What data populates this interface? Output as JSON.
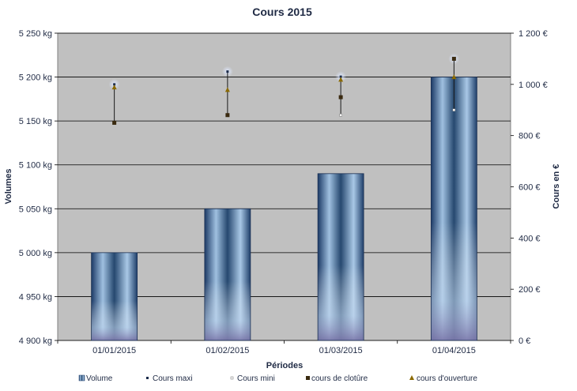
{
  "chart_data": {
    "type": "bar+stock",
    "title": "Cours 2015",
    "xlabel": "Périodes",
    "ylabel": "Volumes",
    "y2label": "Cours en €",
    "categories": [
      "01/01/2015",
      "01/02/2015",
      "01/03/2015",
      "01/04/2015"
    ],
    "ylim": [
      4900,
      5250
    ],
    "yticks": [
      4900,
      4950,
      5000,
      5050,
      5100,
      5150,
      5200,
      5250
    ],
    "ytick_labels": [
      "4 900 kg",
      "4 950 kg",
      "5 000 kg",
      "5 050 kg",
      "5 100 kg",
      "5 150 kg",
      "5 200 kg",
      "5 250 kg"
    ],
    "y2lim": [
      0,
      1200
    ],
    "y2ticks": [
      0,
      200,
      400,
      600,
      800,
      1000,
      1200
    ],
    "y2tick_labels": [
      "0 €",
      "200 €",
      "400 €",
      "600 €",
      "800 €",
      "1 000 €",
      "1 200 €"
    ],
    "grid": true,
    "legend_position": "bottom",
    "series": [
      {
        "name": "Volume",
        "axis": "left",
        "kind": "bar",
        "values": [
          5000,
          5050,
          5090,
          5200
        ]
      },
      {
        "name": "Cours maxi",
        "axis": "right",
        "kind": "marker",
        "values": [
          1000,
          1050,
          1030,
          1100
        ]
      },
      {
        "name": "Cours mini",
        "axis": "right",
        "kind": "marker",
        "values": [
          850,
          880,
          880,
          900
        ]
      },
      {
        "name": "cours de clotûre",
        "axis": "right",
        "kind": "marker",
        "values": [
          850,
          880,
          950,
          1100
        ]
      },
      {
        "name": "cours d'ouverture",
        "axis": "right",
        "kind": "marker",
        "values": [
          990,
          980,
          1020,
          1030
        ]
      }
    ],
    "colors": {
      "plot_bg": "#c0c0c0",
      "bar_dark": "#1f3f6a",
      "bar_light": "#b4cce4",
      "bar_bottom": "#8a86b2",
      "axis_text": "#1f2a44",
      "marker_close": "#3a2a10",
      "marker_open": "#8b6a00",
      "marker_max": "#1a2a4a",
      "marker_min": "#ffffff"
    }
  }
}
